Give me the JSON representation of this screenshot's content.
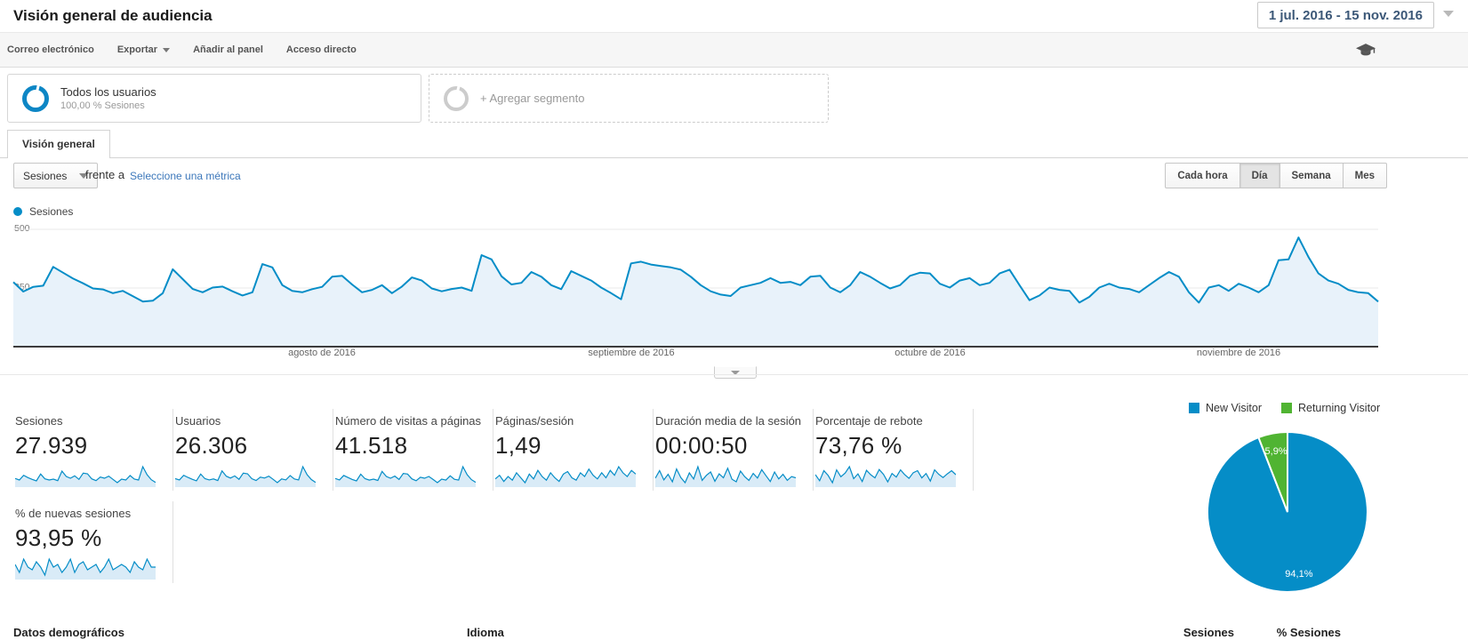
{
  "header": {
    "title": "Visión general de audiencia",
    "date_range": "1 jul. 2016 - 15 nov. 2016"
  },
  "toolbar": {
    "items": [
      "Correo electrónico",
      "Exportar",
      "Añadir al panel",
      "Acceso directo"
    ]
  },
  "segments": {
    "primary": {
      "name": "Todos los usuarios",
      "detail": "100,00 % Sesiones"
    },
    "add_label": "+ Agregar segmento"
  },
  "tabs": {
    "overview": "Visión general"
  },
  "controls": {
    "metric_select": "Sesiones",
    "vs_label": "frente a",
    "select_metric_link": "Seleccione una métrica",
    "granularity": [
      "Cada hora",
      "Día",
      "Semana",
      "Mes"
    ],
    "active_granularity": "Día"
  },
  "chart_data": {
    "type": "area",
    "legend": [
      "Sesiones"
    ],
    "x_labels": [
      "agosto de 2016",
      "septiembre de 2016",
      "octubre de 2016",
      "noviembre de 2016"
    ],
    "y_ticks": [
      "500",
      "250"
    ],
    "ylim": [
      0,
      500
    ],
    "grid": "horizontal",
    "x_range": "1 jul. 2016 - 15 nov. 2016 (daily)",
    "series": [
      {
        "name": "Sesiones",
        "values": [
          275,
          235,
          255,
          260,
          340,
          315,
          290,
          270,
          248,
          244,
          228,
          238,
          215,
          192,
          196,
          228,
          330,
          288,
          246,
          232,
          252,
          256,
          236,
          218,
          232,
          352,
          338,
          262,
          238,
          232,
          245,
          255,
          298,
          302,
          265,
          232,
          242,
          262,
          228,
          256,
          295,
          282,
          248,
          236,
          246,
          252,
          238,
          390,
          372,
          300,
          265,
          272,
          318,
          298,
          262,
          245,
          322,
          302,
          282,
          252,
          228,
          202,
          355,
          362,
          350,
          344,
          338,
          328,
          298,
          262,
          236,
          222,
          216,
          252,
          262,
          272,
          292,
          272,
          276,
          262,
          298,
          302,
          252,
          232,
          262,
          318,
          298,
          272,
          248,
          262,
          302,
          315,
          312,
          268,
          252,
          282,
          292,
          262,
          272,
          312,
          328,
          262,
          198,
          218,
          252,
          242,
          238,
          188,
          212,
          252,
          268,
          252,
          246,
          232,
          262,
          292,
          318,
          298,
          232,
          188,
          252,
          262,
          238,
          268,
          252,
          232,
          262,
          368,
          372,
          465,
          382,
          312,
          282,
          268,
          242,
          232,
          228,
          192
        ]
      }
    ],
    "colors": {
      "line": "#058dc7",
      "fill": "#e8f2fa"
    }
  },
  "cards": [
    {
      "label": "Sesiones",
      "value": "27.939",
      "spark": [
        265,
        240,
        320,
        280,
        250,
        225,
        340,
        260,
        240,
        255,
        230,
        390,
        300,
        270,
        310,
        250,
        355,
        345,
        260,
        230,
        290,
        270,
        305,
        250,
        195,
        255,
        240,
        315,
        255,
        240,
        465,
        330,
        245,
        200
      ]
    },
    {
      "label": "Usuarios",
      "value": "26.306",
      "spark": [
        255,
        235,
        310,
        275,
        245,
        220,
        330,
        255,
        235,
        250,
        225,
        380,
        295,
        265,
        300,
        245,
        345,
        335,
        255,
        225,
        280,
        265,
        295,
        245,
        190,
        250,
        235,
        305,
        250,
        235,
        450,
        320,
        240,
        195
      ]
    },
    {
      "label": "Número de visitas a páginas",
      "value": "41.518",
      "spark": [
        395,
        360,
        470,
        420,
        370,
        335,
        500,
        390,
        355,
        380,
        345,
        570,
        445,
        400,
        455,
        370,
        520,
        505,
        385,
        340,
        425,
        400,
        445,
        370,
        290,
        380,
        355,
        460,
        375,
        355,
        690,
        490,
        365,
        300
      ]
    },
    {
      "label": "Páginas/sesión",
      "value": "1,49",
      "spark": [
        1.45,
        1.48,
        1.43,
        1.47,
        1.44,
        1.5,
        1.46,
        1.42,
        1.49,
        1.45,
        1.52,
        1.47,
        1.44,
        1.5,
        1.46,
        1.43,
        1.49,
        1.51,
        1.46,
        1.44,
        1.5,
        1.47,
        1.53,
        1.48,
        1.45,
        1.5,
        1.46,
        1.52,
        1.48,
        1.55,
        1.5,
        1.47,
        1.52,
        1.49
      ]
    },
    {
      "label": "Duración media de la sesión",
      "value": "00:00:50",
      "spark": [
        45,
        78,
        38,
        62,
        30,
        85,
        48,
        26,
        68,
        42,
        95,
        36,
        58,
        72,
        32,
        64,
        47,
        88,
        41,
        30,
        76,
        52,
        36,
        66,
        46,
        82,
        56,
        31,
        72,
        42,
        62,
        36,
        52,
        47
      ]
    },
    {
      "label": "Porcentaje de rebote",
      "value": "73,76 %",
      "spark": [
        74,
        72.5,
        75,
        73.8,
        72,
        75.2,
        73.5,
        74.4,
        76,
        73,
        74.2,
        72.3,
        75.1,
        74,
        73.2,
        75.3,
        74.1,
        72.2,
        74.3,
        73.4,
        75.2,
        74,
        73.1,
        74.5,
        75,
        73.2,
        74.3,
        72.4,
        75.2,
        74.1,
        73.3,
        74.2,
        75,
        74
      ]
    },
    {
      "label": "% de nuevas sesiones",
      "value": "93,95 %",
      "spark": [
        94.1,
        93.8,
        94.3,
        94,
        93.9,
        94.2,
        94,
        93.7,
        94.3,
        94,
        94.1,
        93.8,
        94,
        94.3,
        93.8,
        94.1,
        94.2,
        93.9,
        94,
        94.1,
        93.8,
        94,
        94.3,
        93.9,
        94,
        94.1,
        94,
        93.8,
        94.2,
        94,
        93.9,
        94.3,
        94,
        94
      ]
    }
  ],
  "pie": {
    "type": "pie",
    "legend": [
      "New Visitor",
      "Returning Visitor"
    ],
    "values": [
      94.1,
      5.9
    ],
    "labels": [
      "94,1%",
      "5,9%"
    ],
    "colors": [
      "#058dc7",
      "#50b432"
    ]
  },
  "bottom": {
    "left_header": "Datos demográficos",
    "middle_header": "Idioma",
    "col_sessions": "Sesiones",
    "col_pct_sessions": "% Sesiones"
  }
}
